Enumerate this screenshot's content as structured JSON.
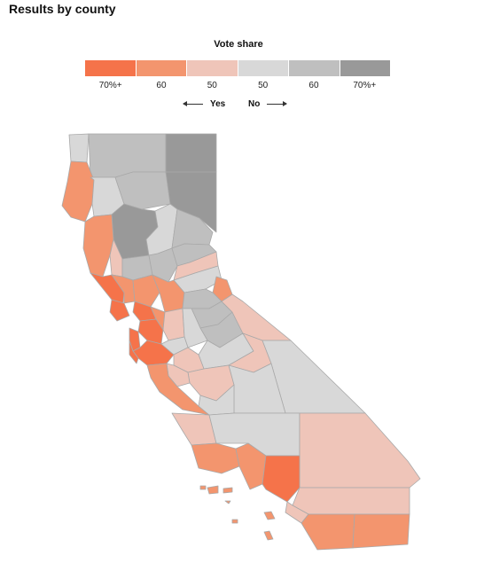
{
  "title": "Results by county",
  "legend": {
    "title": "Vote share",
    "bins": [
      {
        "label": "70%+",
        "color": "#f5734a",
        "side": "Yes"
      },
      {
        "label": "60",
        "color": "#f3956e",
        "side": "Yes"
      },
      {
        "label": "50",
        "color": "#efc5b9",
        "side": "Yes"
      },
      {
        "label": "50",
        "color": "#d8d8d8",
        "side": "No"
      },
      {
        "label": "60",
        "color": "#bfbfbf",
        "side": "No"
      },
      {
        "label": "70%+",
        "color": "#999999",
        "side": "No"
      }
    ],
    "yes_label": "Yes",
    "no_label": "No"
  },
  "colors": {
    "yes70": "#f5734a",
    "yes60": "#f3956e",
    "yes50": "#efc5b9",
    "no50": "#d8d8d8",
    "no60": "#bfbfbf",
    "no70": "#999999",
    "border": "#a9a9a9"
  }
}
